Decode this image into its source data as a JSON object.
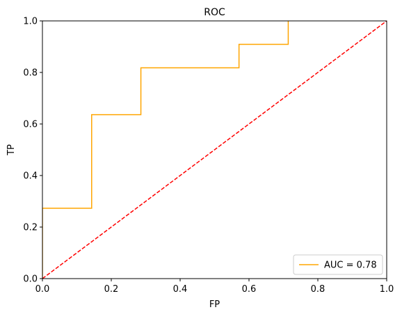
{
  "chart_data": {
    "type": "line",
    "title": "ROC",
    "xlabel": "FP",
    "ylabel": "TP",
    "xlim": [
      0.0,
      1.0
    ],
    "ylim": [
      0.0,
      1.0
    ],
    "xticks": [
      0.0,
      0.2,
      0.4,
      0.6,
      0.8,
      1.0
    ],
    "yticks": [
      0.0,
      0.2,
      0.4,
      0.6,
      0.8,
      1.0
    ],
    "xtick_labels": [
      "0.0",
      "0.2",
      "0.4",
      "0.6",
      "0.8",
      "1.0"
    ],
    "ytick_labels": [
      "0.0",
      "0.2",
      "0.4",
      "0.6",
      "0.8",
      "1.0"
    ],
    "grid": false,
    "legend_position": "lower-right",
    "series": [
      {
        "name": "AUC = 0.78",
        "color": "#ffa500",
        "style": "solid",
        "x": [
          0.0,
          0.0,
          0.143,
          0.143,
          0.286,
          0.286,
          0.571,
          0.571,
          0.714,
          0.714
        ],
        "y": [
          0.0,
          0.273,
          0.273,
          0.636,
          0.636,
          0.818,
          0.818,
          0.909,
          0.909,
          1.0
        ]
      },
      {
        "color": "#ff0000",
        "style": "dashed",
        "x": [
          0.0,
          1.0
        ],
        "y": [
          0.0,
          1.0
        ]
      }
    ]
  }
}
